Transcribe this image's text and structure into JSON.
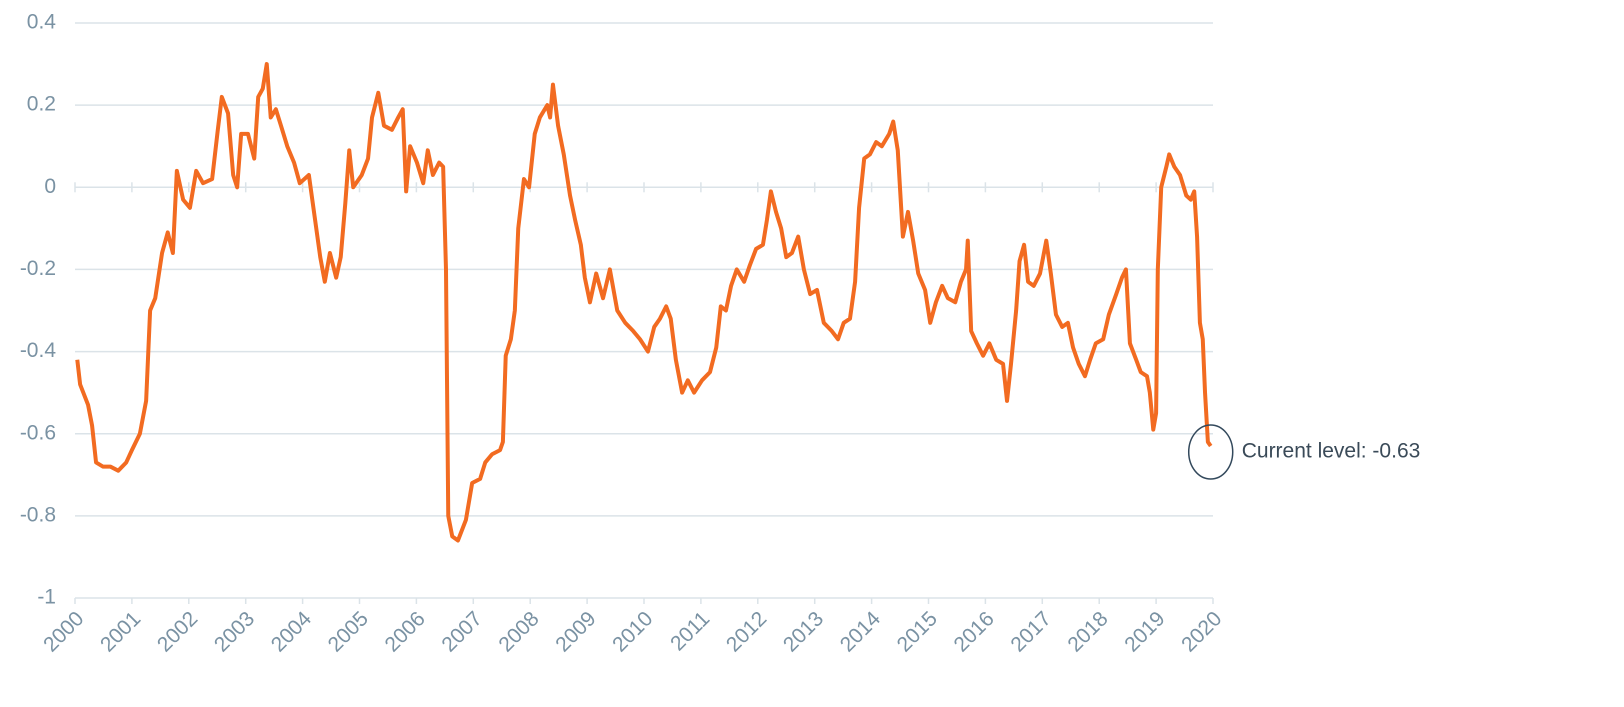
{
  "chart_data": {
    "type": "line",
    "x": [
      2000.04,
      2000.09,
      2000.23,
      2000.3,
      2000.37,
      2000.49,
      2000.62,
      2000.76,
      2000.9,
      2001.0,
      2001.14,
      2001.25,
      2001.32,
      2001.41,
      2001.53,
      2001.63,
      2001.72,
      2001.79,
      2001.9,
      2002.02,
      2002.13,
      2002.25,
      2002.41,
      2002.51,
      2002.58,
      2002.69,
      2002.78,
      2002.85,
      2002.92,
      2003.04,
      2003.15,
      2003.22,
      2003.3,
      2003.37,
      2003.44,
      2003.53,
      2003.62,
      2003.73,
      2003.85,
      2003.95,
      2004.11,
      2004.22,
      2004.31,
      2004.39,
      2004.48,
      2004.59,
      2004.67,
      2004.75,
      2004.82,
      2004.89,
      2005.04,
      2005.15,
      2005.22,
      2005.33,
      2005.43,
      2005.57,
      2005.68,
      2005.76,
      2005.82,
      2005.89,
      2006.01,
      2006.12,
      2006.2,
      2006.29,
      2006.4,
      2006.47,
      2006.52,
      2006.56,
      2006.63,
      2006.73,
      2006.87,
      2006.98,
      2007.12,
      2007.21,
      2007.33,
      2007.47,
      2007.52,
      2007.57,
      2007.66,
      2007.73,
      2007.79,
      2007.89,
      2007.98,
      2008.08,
      2008.17,
      2008.3,
      2008.35,
      2008.4,
      2008.49,
      2008.59,
      2008.7,
      2008.79,
      2008.89,
      2008.96,
      2009.05,
      2009.16,
      2009.28,
      2009.4,
      2009.53,
      2009.67,
      2009.81,
      2009.93,
      2010.07,
      2010.18,
      2010.28,
      2010.39,
      2010.47,
      2010.56,
      2010.67,
      2010.77,
      2010.88,
      2011.02,
      2011.16,
      2011.27,
      2011.35,
      2011.44,
      2011.53,
      2011.63,
      2011.76,
      2011.86,
      2011.97,
      2012.09,
      2012.16,
      2012.23,
      2012.32,
      2012.41,
      2012.5,
      2012.6,
      2012.71,
      2012.81,
      2012.92,
      2013.04,
      2013.16,
      2013.3,
      2013.41,
      2013.51,
      2013.62,
      2013.71,
      2013.78,
      2013.87,
      2013.97,
      2014.08,
      2014.18,
      2014.31,
      2014.38,
      2014.46,
      2014.55,
      2014.64,
      2014.73,
      2014.82,
      2014.94,
      2015.03,
      2015.13,
      2015.24,
      2015.34,
      2015.47,
      2015.57,
      2015.66,
      2015.69,
      2015.75,
      2015.85,
      2015.96,
      2016.07,
      2016.19,
      2016.31,
      2016.38,
      2016.45,
      2016.54,
      2016.6,
      2016.68,
      2016.75,
      2016.85,
      2016.96,
      2017.07,
      2017.15,
      2017.24,
      2017.35,
      2017.45,
      2017.54,
      2017.64,
      2017.75,
      2017.84,
      2017.94,
      2018.07,
      2018.17,
      2018.3,
      2018.4,
      2018.47,
      2018.54,
      2018.65,
      2018.73,
      2018.84,
      2018.89,
      2018.95,
      2019.0,
      2019.03,
      2019.09,
      2019.18,
      2019.23,
      2019.32,
      2019.42,
      2019.53,
      2019.61,
      2019.67,
      2019.72,
      2019.77,
      2019.82,
      2019.86,
      2019.91,
      2019.96
    ],
    "series": [
      {
        "color": "#f26b21",
        "values": [
          -0.42,
          -0.48,
          -0.53,
          -0.58,
          -0.67,
          -0.68,
          -0.68,
          -0.69,
          -0.67,
          -0.64,
          -0.6,
          -0.52,
          -0.3,
          -0.27,
          -0.16,
          -0.11,
          -0.16,
          0.04,
          -0.03,
          -0.05,
          0.04,
          0.01,
          0.02,
          0.14,
          0.22,
          0.18,
          0.03,
          0.0,
          0.13,
          0.13,
          0.07,
          0.22,
          0.24,
          0.3,
          0.17,
          0.19,
          0.15,
          0.1,
          0.06,
          0.01,
          0.03,
          -0.08,
          -0.17,
          -0.23,
          -0.16,
          -0.22,
          -0.17,
          -0.04,
          0.09,
          0.0,
          0.03,
          0.07,
          0.17,
          0.23,
          0.15,
          0.14,
          0.17,
          0.19,
          -0.01,
          0.1,
          0.06,
          0.01,
          0.09,
          0.03,
          0.06,
          0.05,
          -0.2,
          -0.8,
          -0.85,
          -0.86,
          -0.81,
          -0.72,
          -0.71,
          -0.67,
          -0.65,
          -0.64,
          -0.62,
          -0.41,
          -0.37,
          -0.3,
          -0.1,
          0.02,
          0.0,
          0.13,
          0.17,
          0.2,
          0.17,
          0.25,
          0.15,
          0.08,
          -0.02,
          -0.08,
          -0.14,
          -0.22,
          -0.28,
          -0.21,
          -0.27,
          -0.2,
          -0.3,
          -0.33,
          -0.35,
          -0.37,
          -0.4,
          -0.34,
          -0.32,
          -0.29,
          -0.32,
          -0.42,
          -0.5,
          -0.47,
          -0.5,
          -0.47,
          -0.45,
          -0.39,
          -0.29,
          -0.3,
          -0.24,
          -0.2,
          -0.23,
          -0.19,
          -0.15,
          -0.14,
          -0.08,
          -0.01,
          -0.06,
          -0.1,
          -0.17,
          -0.16,
          -0.12,
          -0.2,
          -0.26,
          -0.25,
          -0.33,
          -0.35,
          -0.37,
          -0.33,
          -0.32,
          -0.23,
          -0.05,
          0.07,
          0.08,
          0.11,
          0.1,
          0.13,
          0.16,
          0.09,
          -0.12,
          -0.06,
          -0.13,
          -0.21,
          -0.25,
          -0.33,
          -0.28,
          -0.24,
          -0.27,
          -0.28,
          -0.23,
          -0.2,
          -0.13,
          -0.35,
          -0.38,
          -0.41,
          -0.38,
          -0.42,
          -0.43,
          -0.52,
          -0.43,
          -0.3,
          -0.18,
          -0.14,
          -0.23,
          -0.24,
          -0.21,
          -0.13,
          -0.21,
          -0.31,
          -0.34,
          -0.33,
          -0.39,
          -0.43,
          -0.46,
          -0.42,
          -0.38,
          -0.37,
          -0.31,
          -0.26,
          -0.22,
          -0.2,
          -0.38,
          -0.42,
          -0.45,
          -0.46,
          -0.5,
          -0.59,
          -0.55,
          -0.2,
          0.0,
          0.05,
          0.08,
          0.05,
          0.03,
          -0.02,
          -0.03,
          -0.01,
          -0.12,
          -0.33,
          -0.37,
          -0.5,
          -0.62,
          -0.63
        ]
      }
    ],
    "xlim": [
      2000,
      2020
    ],
    "xticks": [
      2000,
      2001,
      2002,
      2003,
      2004,
      2005,
      2006,
      2007,
      2008,
      2009,
      2010,
      2011,
      2012,
      2013,
      2014,
      2015,
      2016,
      2017,
      2018,
      2019,
      2020
    ],
    "ylim": [
      -1,
      0.4
    ],
    "yticks": [
      0.4,
      0.2,
      0,
      -0.2,
      -0.4,
      -0.6,
      -0.8,
      -1
    ],
    "grid": true,
    "annotation": "Current level: -0.63"
  }
}
